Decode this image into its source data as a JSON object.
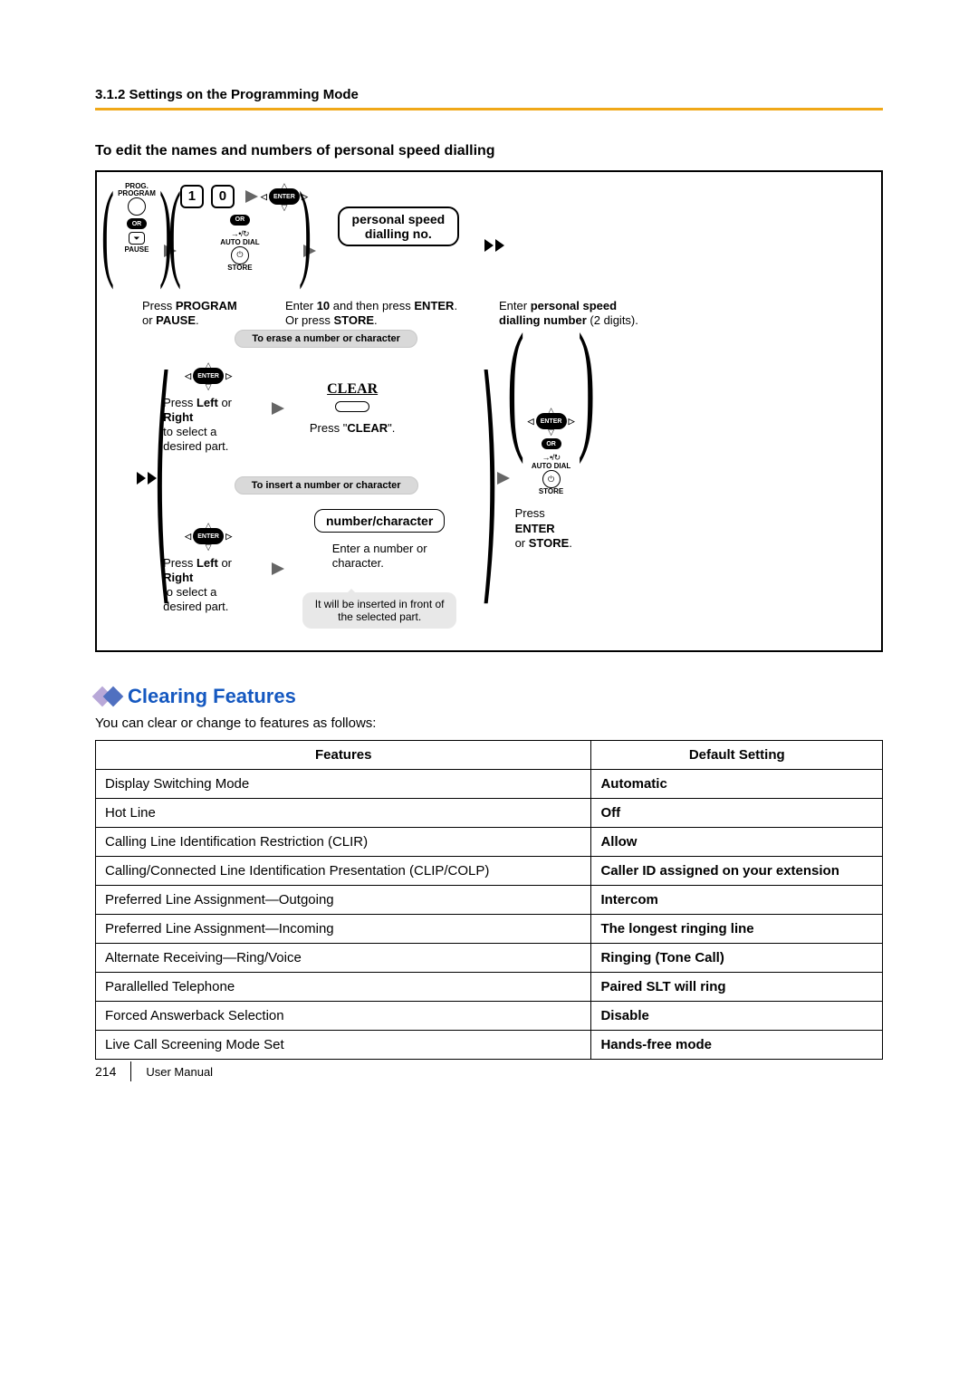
{
  "section_header": "3.1.2 Settings on the Programming Mode",
  "subheading": "To edit the names and numbers of personal speed dialling",
  "diagram": {
    "step1": {
      "label_top": "PROG.\nPROGRAM",
      "label_pause": "PAUSE",
      "or": "OR",
      "caption_html": "Press <b>PROGRAM</b><br>or <b>PAUSE</b>."
    },
    "step2": {
      "key1": "1",
      "key0": "0",
      "or": "OR",
      "autodial": "AUTO DIAL",
      "store": "STORE",
      "enter": "ENTER",
      "caption_html": "Enter <b>10</b> and then press <b>ENTER</b>.<br>Or press <b>STORE</b>."
    },
    "step3": {
      "box_line1": "personal speed",
      "box_line2": "dialling no.",
      "caption_html": "Enter <b>personal speed<br>dialling number</b> (2 digits)."
    },
    "erase_banner": "To erase a number or character",
    "insert_banner": "To insert a number or character",
    "erase": {
      "left_caption_html": "Press <b>Left</b> or <b>Right</b><br>to select a desired part.",
      "clear_label": "CLEAR",
      "clear_caption_html": "Press \"<b>CLEAR</b>\"."
    },
    "insert": {
      "left_caption_html": "Press <b>Left</b> or <b>Right</b><br>to select a desired part.",
      "box": "number/character",
      "right_caption_html": "Enter a number or<br>character.",
      "note": "It will be inserted in front of the selected part."
    },
    "step5": {
      "or": "OR",
      "autodial": "AUTO DIAL",
      "store": "STORE",
      "enter": "ENTER",
      "caption_html": "Press <b>ENTER</b><br>or <b>STORE</b>."
    }
  },
  "clearing": {
    "heading": "Clearing Features",
    "intro": "You can clear or change to features as follows:",
    "columns": [
      "Features",
      "Default Setting"
    ],
    "rows": [
      [
        "Display Switching Mode",
        "Automatic"
      ],
      [
        "Hot Line",
        "Off"
      ],
      [
        "Calling Line Identification Restriction (CLIR)",
        "Allow"
      ],
      [
        "Calling/Connected Line Identification Presentation (CLIP/COLP)",
        "Caller ID assigned on your extension"
      ],
      [
        "Preferred Line Assignment—Outgoing",
        "Intercom"
      ],
      [
        "Preferred Line Assignment—Incoming",
        "The longest ringing line"
      ],
      [
        "Alternate Receiving—Ring/Voice",
        "Ringing (Tone Call)"
      ],
      [
        "Parallelled Telephone",
        "Paired SLT will ring"
      ],
      [
        "Forced Answerback Selection",
        "Disable"
      ],
      [
        "Live Call Screening Mode Set",
        "Hands-free mode"
      ]
    ]
  },
  "footer": {
    "page": "214",
    "label": "User Manual"
  },
  "colors": {
    "accent_rule": "#f0a818",
    "heading_blue": "#1558c0",
    "banner_gray": "#d9d9d9"
  }
}
